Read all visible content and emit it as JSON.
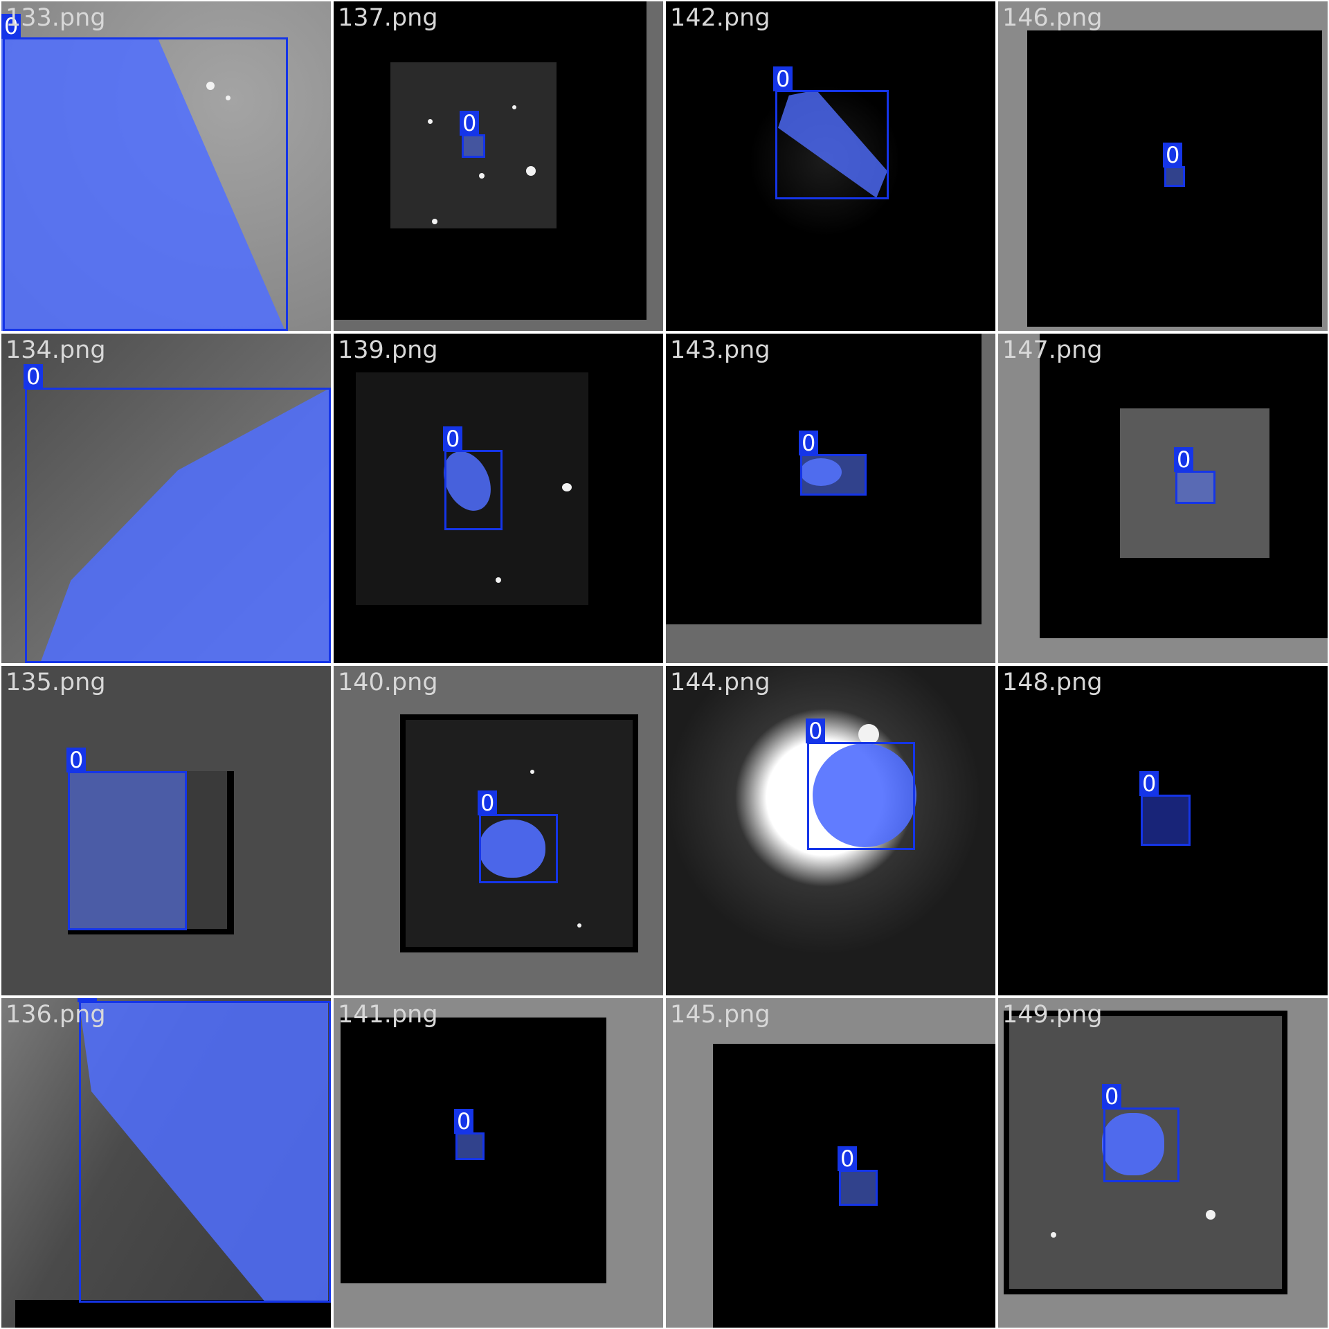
{
  "mosaic": {
    "tiles": [
      {
        "filename": "133.png",
        "detections": [
          {
            "class_label": "0"
          }
        ]
      },
      {
        "filename": "137.png",
        "detections": [
          {
            "class_label": "0"
          }
        ]
      },
      {
        "filename": "142.png",
        "detections": [
          {
            "class_label": "0"
          }
        ]
      },
      {
        "filename": "146.png",
        "detections": [
          {
            "class_label": "0"
          }
        ]
      },
      {
        "filename": "134.png",
        "detections": [
          {
            "class_label": "0"
          }
        ]
      },
      {
        "filename": "139.png",
        "detections": [
          {
            "class_label": "0"
          }
        ]
      },
      {
        "filename": "143.png",
        "detections": [
          {
            "class_label": "0"
          }
        ]
      },
      {
        "filename": "147.png",
        "detections": [
          {
            "class_label": "0"
          }
        ]
      },
      {
        "filename": "135.png",
        "detections": [
          {
            "class_label": "0"
          }
        ]
      },
      {
        "filename": "140.png",
        "detections": [
          {
            "class_label": "0"
          }
        ]
      },
      {
        "filename": "144.png",
        "detections": [
          {
            "class_label": "0"
          }
        ]
      },
      {
        "filename": "148.png",
        "detections": [
          {
            "class_label": "0"
          }
        ]
      },
      {
        "filename": "136.png",
        "detections": [
          {
            "class_label": "0"
          }
        ]
      },
      {
        "filename": "141.png",
        "detections": [
          {
            "class_label": "0"
          }
        ]
      },
      {
        "filename": "145.png",
        "detections": [
          {
            "class_label": "0"
          }
        ]
      },
      {
        "filename": "149.png",
        "detections": [
          {
            "class_label": "0"
          }
        ]
      }
    ]
  },
  "colors": {
    "detection_box": "#1535e8",
    "mask_fill": "#5a78ff",
    "label_text": "#ffffff",
    "filename_text": "#d8d8d8"
  }
}
